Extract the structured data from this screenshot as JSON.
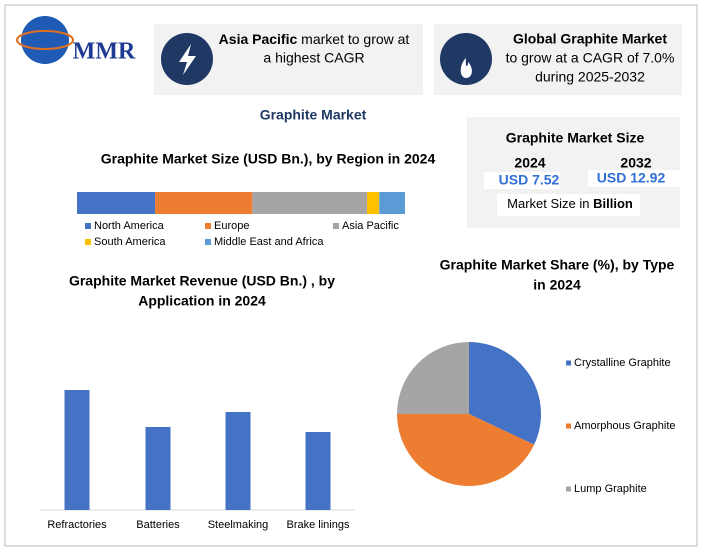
{
  "logo": "MMR",
  "card1": {
    "highlight": "Asia Pacific",
    "line1": "market to grow at",
    "line2": "a highest CAGR"
  },
  "card2": {
    "highlight": "Global Graphite Market",
    "line1": "to grow at a CAGR of 7.0%",
    "line2": "during 2025-2032"
  },
  "title": "Graphite Market",
  "size_box": {
    "title": "Graphite Market Size",
    "year1": "2024",
    "year2": "2032",
    "value1": "USD 7.52",
    "value2": "USD 12.92",
    "unit_text": "Market Size in",
    "unit": "Billion"
  },
  "chart_data": [
    {
      "type": "stacked-bar",
      "title": [
        "Graphite Market Size (USD Bn.), by Region in 2024"
      ],
      "xlim": [
        0,
        7.52
      ],
      "series": [
        {
          "name": "North America",
          "color": "#4472c4",
          "values": [
            1.79
          ]
        },
        {
          "name": "Europe",
          "color": "#ed7d31",
          "values": [
            2.23
          ]
        },
        {
          "name": "Asia Pacific",
          "color": "#a5a5a5",
          "values": [
            2.63
          ]
        },
        {
          "name": "South America",
          "color": "#ffc000",
          "values": [
            0.28
          ]
        },
        {
          "name": "Middle East and Africa",
          "color": "#5b9bd5",
          "values": [
            0.59
          ]
        }
      ]
    },
    {
      "type": "bar",
      "title": [
        "Graphite Market Revenue (USD Bn.) , by",
        "Application in 2024"
      ],
      "categories": [
        "Refractories",
        "Batteries",
        "Steelmaking",
        "Brake linings"
      ],
      "values": [
        2.4,
        1.66,
        1.96,
        1.56
      ],
      "color": "#4472c4",
      "ylim": [
        0,
        3
      ]
    },
    {
      "type": "pie",
      "title": [
        "Graphite Market Share (%), by Type",
        "in 2024"
      ],
      "categories": [
        "Crystalline Graphite",
        "Amorphous Graphite",
        "Lump Graphite"
      ],
      "values": [
        32,
        43,
        25
      ],
      "colors": [
        "#4472c4",
        "#ed7d31",
        "#a5a5a5"
      ]
    }
  ]
}
